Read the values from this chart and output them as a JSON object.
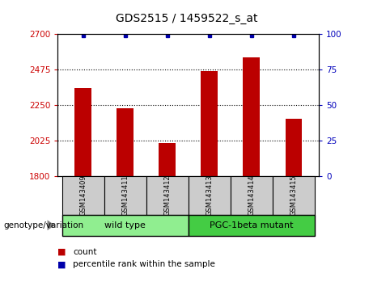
{
  "title": "GDS2515 / 1459522_s_at",
  "samples": [
    "GSM143409",
    "GSM143411",
    "GSM143412",
    "GSM143413",
    "GSM143414",
    "GSM143415"
  ],
  "counts": [
    2360,
    2230,
    2010,
    2465,
    2555,
    2165
  ],
  "percentile_ranks": [
    99,
    99,
    99,
    99,
    99,
    99
  ],
  "ylim_left": [
    1800,
    2700
  ],
  "yticks_left": [
    1800,
    2025,
    2250,
    2475,
    2700
  ],
  "yticks_right": [
    0,
    25,
    50,
    75,
    100
  ],
  "groups": [
    {
      "label": "wild type",
      "n": 3,
      "color": "#90EE90"
    },
    {
      "label": "PGC-1beta mutant",
      "n": 3,
      "color": "#44CC44"
    }
  ],
  "bar_color": "#BB0000",
  "percentile_color": "#0000AA",
  "bar_width": 0.4,
  "left_tick_color": "#CC0000",
  "right_tick_color": "#0000BB",
  "group_label": "genotype/variation",
  "legend_count_label": "count",
  "legend_percentile_label": "percentile rank within the sample",
  "sample_label_bg": "#CCCCCC",
  "fig_bg": "#FFFFFF"
}
